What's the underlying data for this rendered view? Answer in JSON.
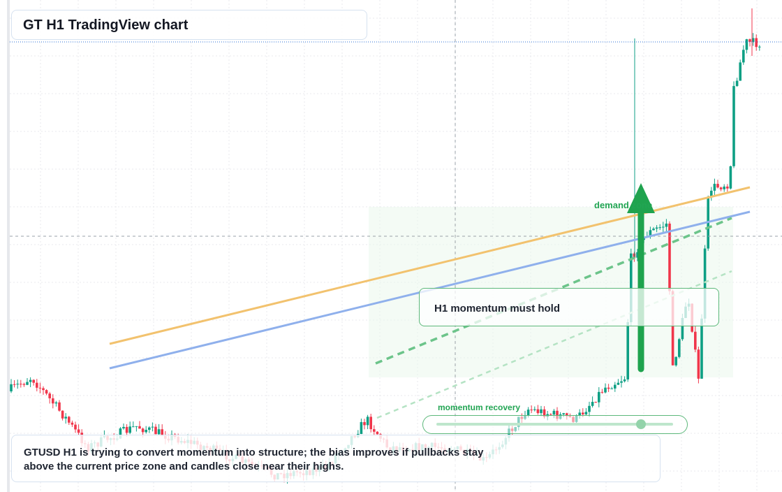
{
  "header": {
    "title": "GT H1 TradingView chart"
  },
  "annotations": {
    "zone_label": "demand zone",
    "note": "H1 momentum must hold",
    "slider_label": "momentum recovery"
  },
  "summary": {
    "text": "GTUSD H1 is trying to convert momentum into structure; the bias improves if pullbacks stay above the current price zone and candles close near their highs."
  }
}
